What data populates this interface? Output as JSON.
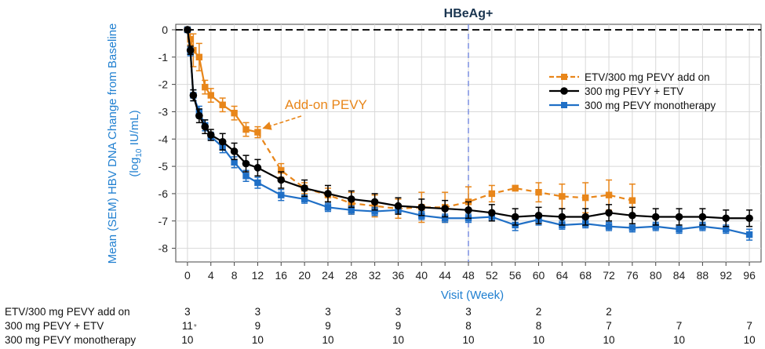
{
  "chart_data": {
    "type": "line",
    "title": "HBeAg+",
    "xlabel": "Visit (Week)",
    "ylabel_main": "Mean (SEM) HBV DNA Change from Baseline",
    "ylabel_unit_prefix": "(log",
    "ylabel_unit_sub": "10",
    "ylabel_unit_suffix": " IU/mL)",
    "xlim": [
      -2,
      98
    ],
    "ylim": [
      -8.5,
      0.2
    ],
    "xticks": [
      0,
      4,
      8,
      12,
      16,
      20,
      24,
      28,
      32,
      36,
      40,
      44,
      48,
      52,
      56,
      60,
      64,
      68,
      72,
      76,
      80,
      84,
      88,
      92,
      96
    ],
    "yticks": [
      0,
      -1,
      -2,
      -3,
      -4,
      -5,
      -6,
      -7,
      -8
    ],
    "grid": true,
    "reference_hline": 0,
    "reference_vline": 48,
    "legend_position": "top-right",
    "annotation": {
      "text": "Add-on PEVY",
      "target_x": 12,
      "target_y": -3.75
    },
    "series": [
      {
        "name": "ETV/300 mg PEVY add on",
        "color": "#e8861a",
        "marker": "square",
        "dash_from_x": 12,
        "x": [
          0,
          0.5,
          1,
          2,
          3,
          4,
          6,
          8,
          10,
          12,
          16,
          20,
          24,
          28,
          32,
          36,
          40,
          44,
          48,
          52,
          56,
          60,
          64,
          68,
          72,
          76
        ],
        "y": [
          0,
          -0.35,
          -0.75,
          -1.0,
          -2.1,
          -2.4,
          -2.75,
          -3.05,
          -3.65,
          -3.75,
          -5.15,
          -5.8,
          -6.05,
          -6.35,
          -6.45,
          -6.55,
          -6.5,
          -6.5,
          -6.3,
          -6.0,
          -5.8,
          -5.95,
          -6.1,
          -6.15,
          -6.05,
          -6.25
        ],
        "sem": [
          0,
          0.2,
          0.6,
          0.5,
          0.25,
          0.25,
          0.25,
          0.25,
          0.25,
          0.2,
          0.25,
          0.2,
          0.25,
          0.4,
          0.4,
          0.35,
          0.55,
          0.55,
          0.55,
          0.3,
          0.1,
          0.35,
          0.45,
          0.55,
          0.55,
          0.6
        ]
      },
      {
        "name": "300 mg PEVY + ETV",
        "color": "#000000",
        "marker": "circle",
        "x": [
          0,
          0.5,
          1,
          2,
          3,
          4,
          6,
          8,
          10,
          12,
          16,
          20,
          24,
          28,
          32,
          36,
          40,
          44,
          48,
          52,
          56,
          60,
          64,
          68,
          72,
          76,
          80,
          84,
          88,
          92,
          96
        ],
        "y": [
          0,
          -0.75,
          -2.4,
          -3.15,
          -3.55,
          -3.85,
          -4.1,
          -4.45,
          -4.9,
          -5.05,
          -5.5,
          -5.8,
          -6.0,
          -6.2,
          -6.3,
          -6.45,
          -6.5,
          -6.55,
          -6.6,
          -6.7,
          -6.85,
          -6.8,
          -6.85,
          -6.85,
          -6.7,
          -6.8,
          -6.85,
          -6.85,
          -6.85,
          -6.9,
          -6.9
        ],
        "sem": [
          0,
          0.15,
          0.2,
          0.25,
          0.25,
          0.2,
          0.3,
          0.3,
          0.3,
          0.3,
          0.3,
          0.3,
          0.3,
          0.3,
          0.3,
          0.3,
          0.3,
          0.3,
          0.3,
          0.3,
          0.3,
          0.3,
          0.3,
          0.3,
          0.3,
          0.3,
          0.3,
          0.3,
          0.3,
          0.3,
          0.3
        ]
      },
      {
        "name": "300 mg PEVY monotherapy",
        "color": "#1f6fc6",
        "marker": "square",
        "x": [
          0,
          0.5,
          1,
          2,
          3,
          4,
          6,
          8,
          10,
          12,
          16,
          20,
          24,
          28,
          32,
          36,
          40,
          44,
          48,
          52,
          56,
          60,
          64,
          68,
          72,
          76,
          80,
          84,
          88,
          92,
          96
        ],
        "y": [
          0,
          -0.8,
          -2.4,
          -3.0,
          -3.5,
          -3.9,
          -4.3,
          -4.85,
          -5.35,
          -5.6,
          -6.05,
          -6.2,
          -6.5,
          -6.6,
          -6.65,
          -6.6,
          -6.8,
          -6.9,
          -6.9,
          -6.85,
          -7.15,
          -6.95,
          -7.15,
          -7.1,
          -7.2,
          -7.25,
          -7.2,
          -7.3,
          -7.2,
          -7.3,
          -7.5
        ],
        "sem": [
          0,
          0.15,
          0.2,
          0.2,
          0.2,
          0.15,
          0.2,
          0.2,
          0.2,
          0.2,
          0.2,
          0.15,
          0.15,
          0.15,
          0.15,
          0.15,
          0.15,
          0.15,
          0.15,
          0.15,
          0.2,
          0.2,
          0.15,
          0.15,
          0.15,
          0.15,
          0.15,
          0.15,
          0.15,
          0.15,
          0.2
        ]
      }
    ],
    "n_at_risk": [
      {
        "name": "ETV/300 mg PEVY add on",
        "x": [
          0,
          12,
          24,
          36,
          48,
          60,
          72
        ],
        "values": [
          "3",
          "3",
          "3",
          "3",
          "3",
          "2",
          "2"
        ]
      },
      {
        "name": "300 mg PEVY + ETV",
        "x": [
          0,
          12,
          24,
          36,
          48,
          60,
          72,
          84,
          96
        ],
        "values": [
          "11",
          "9",
          "9",
          "9",
          "8",
          "8",
          "7",
          "7",
          "7"
        ],
        "first_mark": "*"
      },
      {
        "name": "300 mg PEVY monotherapy",
        "x": [
          0,
          12,
          24,
          36,
          48,
          60,
          72,
          84,
          96
        ],
        "values": [
          "10",
          "10",
          "10",
          "10",
          "10",
          "10",
          "10",
          "10",
          "10"
        ]
      }
    ]
  }
}
